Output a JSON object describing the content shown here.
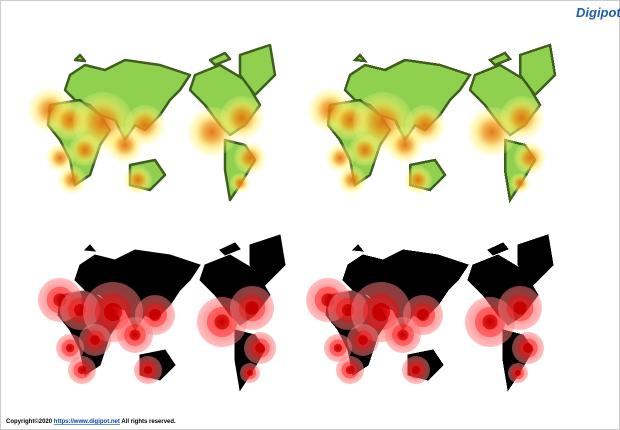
{
  "logo": "Digipot",
  "footer": {
    "copyright": "Copyright©2020",
    "link": "https://www.digipot.net",
    "rights": "All rights reserved."
  }
}
